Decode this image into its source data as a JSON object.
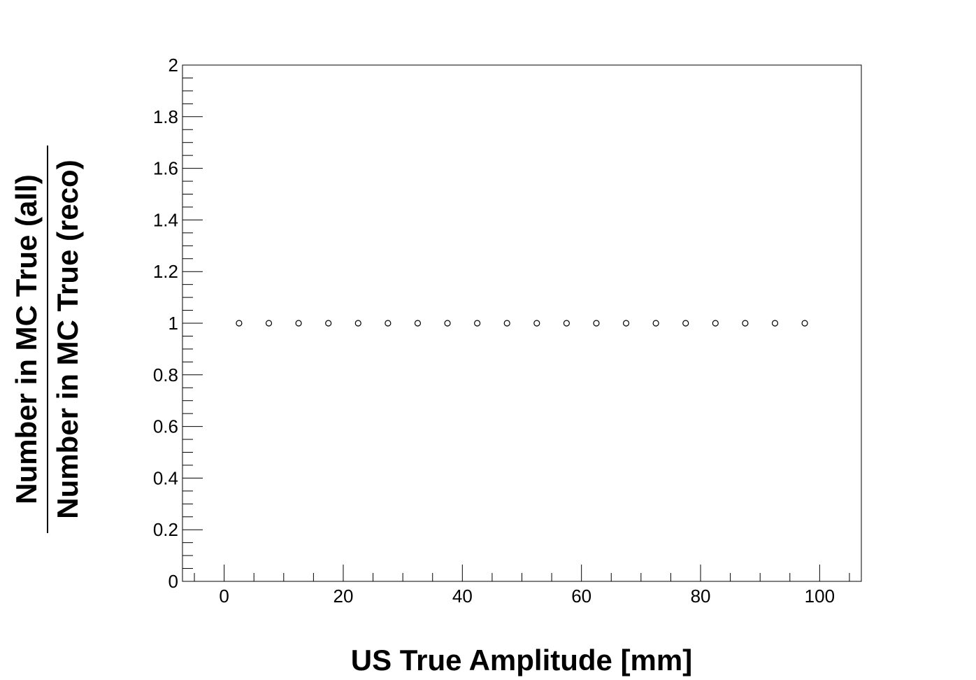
{
  "chart_data": {
    "type": "scatter",
    "title": "",
    "xlabel": "US True Amplitude [mm]",
    "ylabel": {
      "numerator": "Number in MC True (all)",
      "denominator": "Number in MC True (reco)"
    },
    "xlim": [
      -7,
      107
    ],
    "ylim": [
      0,
      2
    ],
    "x_ticks": [
      0,
      20,
      40,
      60,
      80,
      100
    ],
    "y_ticks": [
      0,
      0.2,
      0.4,
      0.6,
      0.8,
      1,
      1.2,
      1.4,
      1.6,
      1.8,
      2
    ],
    "x_tick_labels": [
      "0",
      "20",
      "40",
      "60",
      "80",
      "100"
    ],
    "y_tick_labels": [
      "0",
      "0.2",
      "0.4",
      "0.6",
      "0.8",
      "1",
      "1.2",
      "1.4",
      "1.6",
      "1.8",
      "2"
    ],
    "x_minor_step": 5,
    "y_minor_step": 0.05,
    "grid": false,
    "legend": false,
    "marker": "open-circle",
    "series": [
      {
        "x": [
          2.5,
          7.5,
          12.5,
          17.5,
          22.5,
          27.5,
          32.5,
          37.5,
          42.5,
          47.5,
          52.5,
          57.5,
          62.5,
          67.5,
          72.5,
          77.5,
          82.5,
          87.5,
          92.5,
          97.5
        ],
        "y": [
          1,
          1,
          1,
          1,
          1,
          1,
          1,
          1,
          1,
          1,
          1,
          1,
          1,
          1,
          1,
          1,
          1,
          1,
          1,
          1
        ]
      }
    ]
  }
}
